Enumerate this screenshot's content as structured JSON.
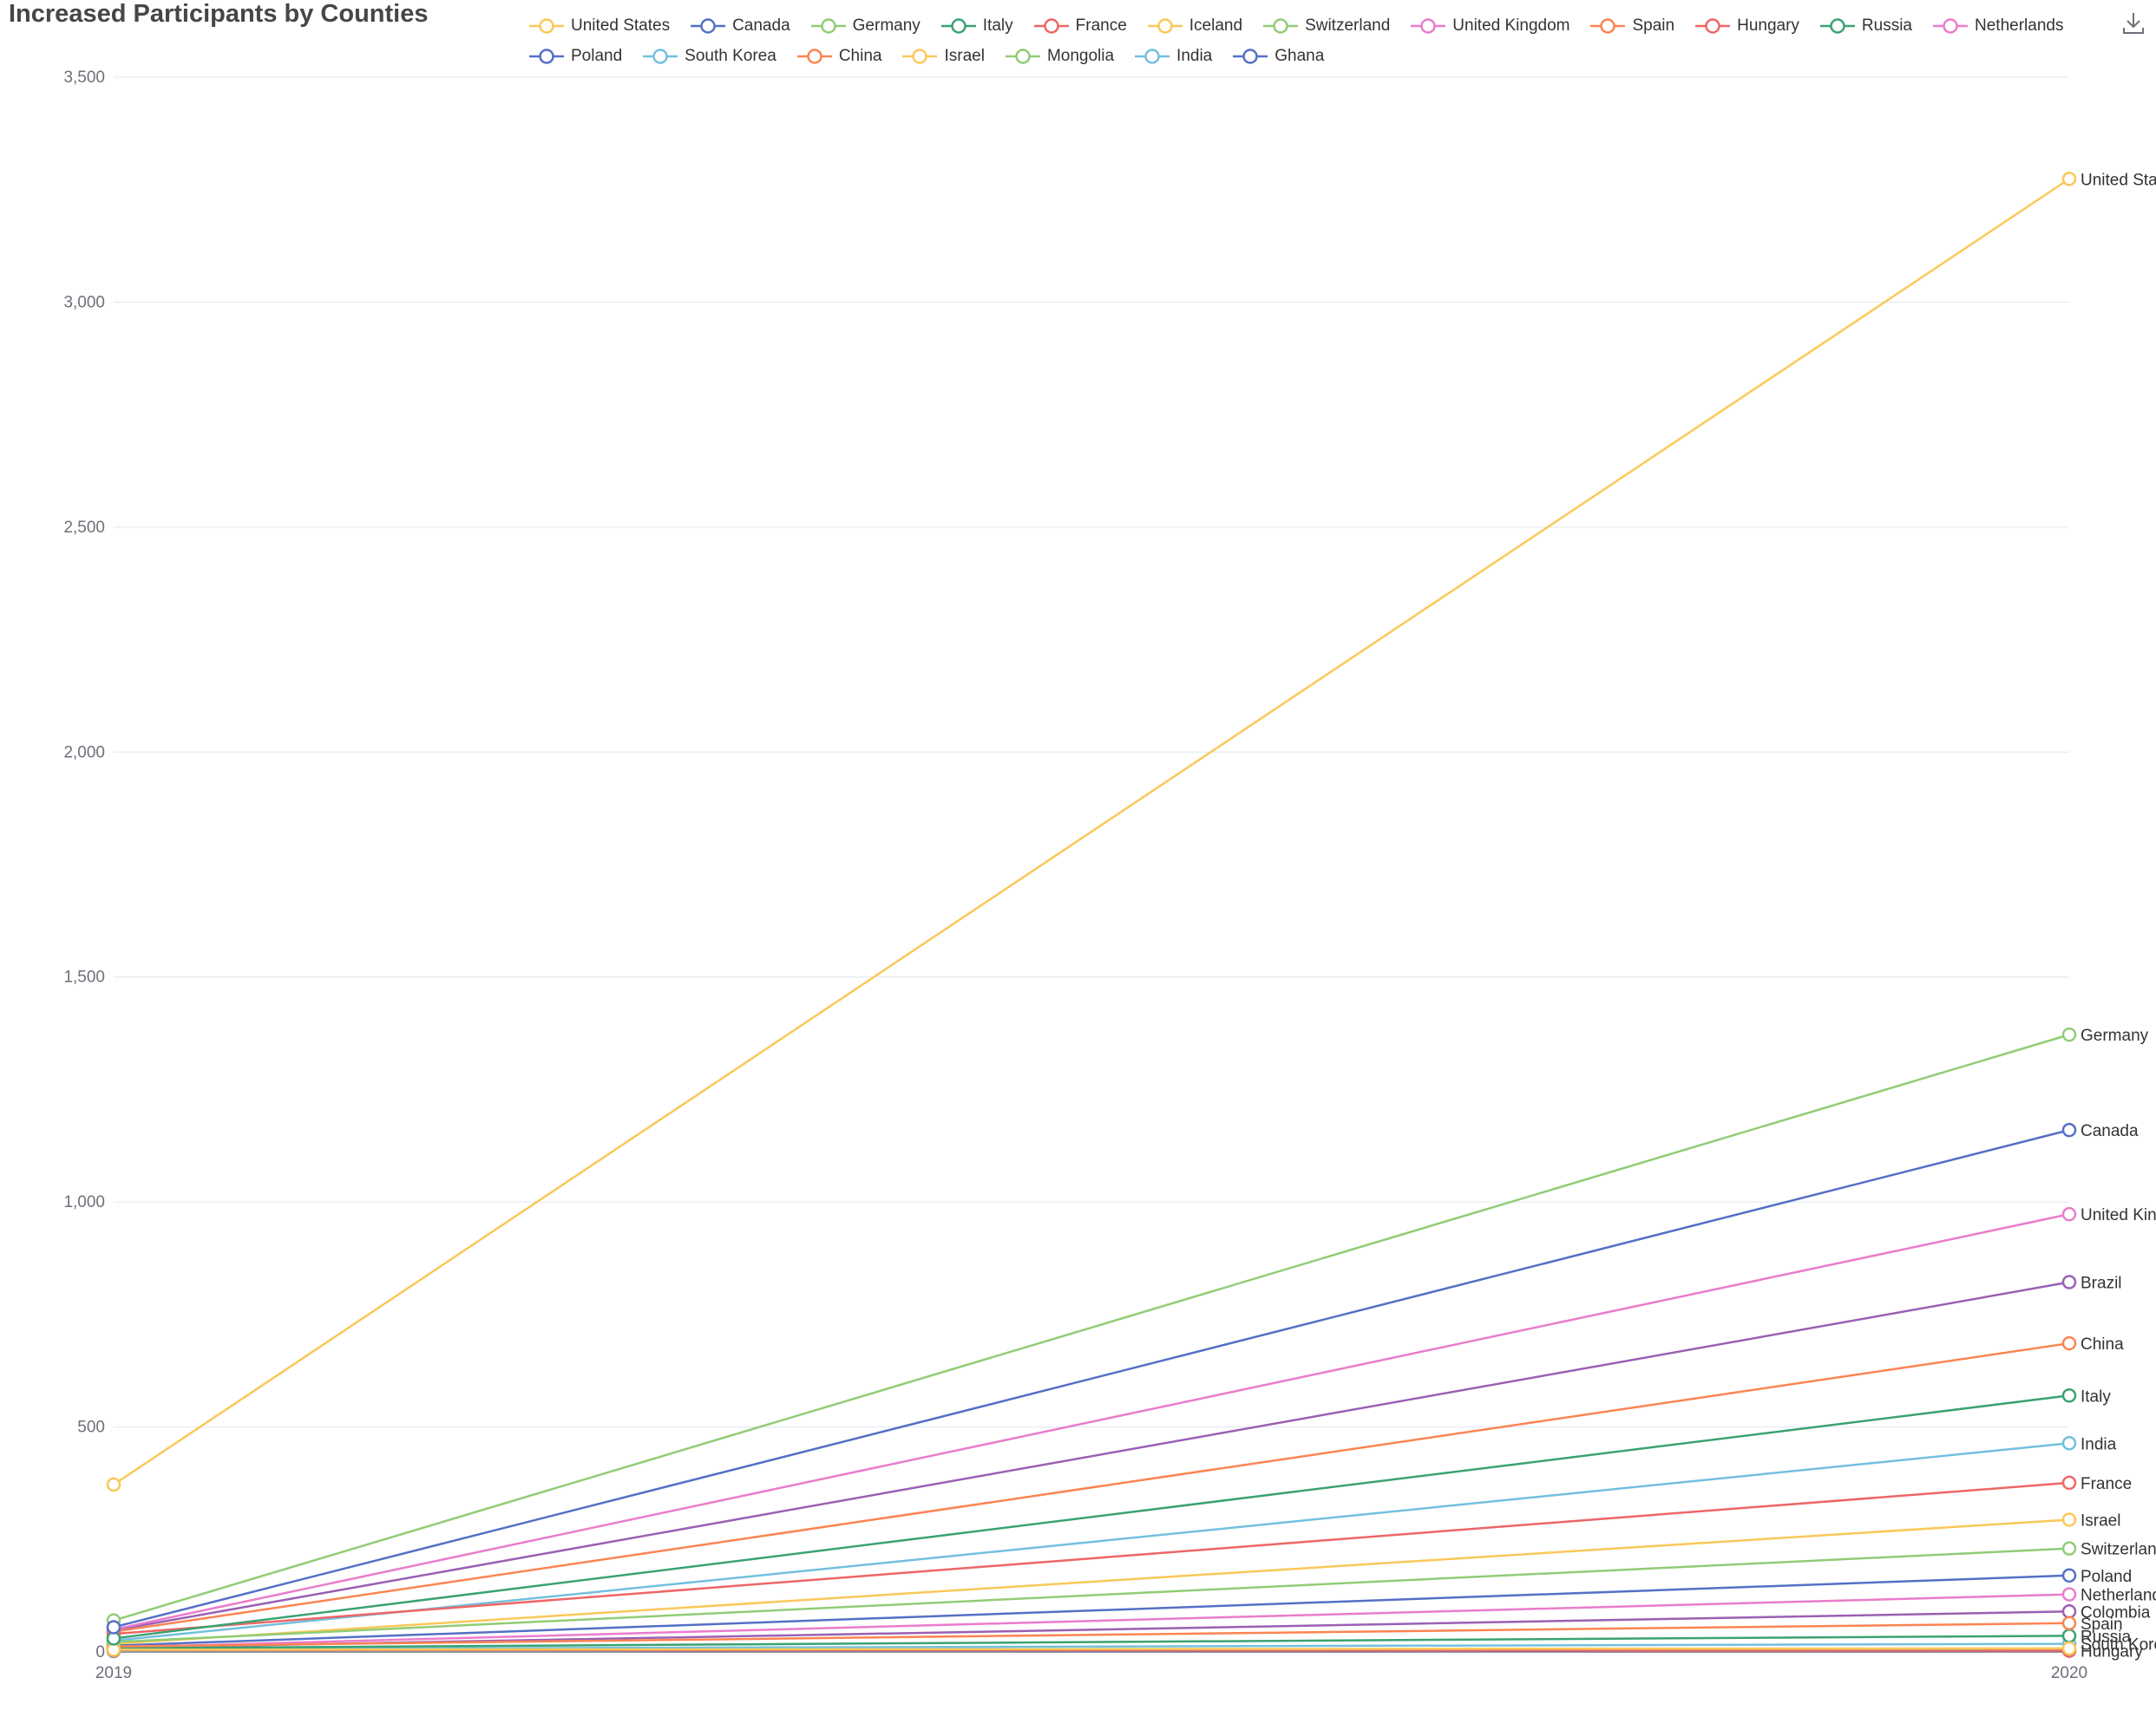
{
  "colors": {
    "grid": "#e0e6f1",
    "axis_text": "#6e7079",
    "axis_line": "#6e7079"
  },
  "toolbox": {
    "icon": "download-icon"
  },
  "chart_data": {
    "type": "line",
    "title": "Increased Participants by Counties",
    "x": [
      "2019",
      "2020"
    ],
    "ylim": [
      0,
      3500
    ],
    "yticks": [
      0,
      500,
      1000,
      1500,
      2000,
      2500,
      3000,
      3500
    ],
    "ytick_labels": [
      "0",
      "500",
      "1,000",
      "1,500",
      "2,000",
      "2,500",
      "3,000",
      "3,500"
    ],
    "grid": true,
    "legend_position": "top",
    "end_labels": true,
    "series": [
      {
        "name": "United States",
        "color": "#fac858",
        "values": [
          372,
          3274
        ],
        "in_legend": true
      },
      {
        "name": "Canada",
        "color": "#5470c6",
        "values": [
          55,
          1160
        ],
        "in_legend": true
      },
      {
        "name": "Germany",
        "color": "#91cc75",
        "values": [
          70,
          1372
        ],
        "in_legend": true
      },
      {
        "name": "Italy",
        "color": "#3ba272",
        "values": [
          30,
          570
        ],
        "in_legend": true
      },
      {
        "name": "France",
        "color": "#ee6666",
        "values": [
          40,
          376
        ],
        "in_legend": true
      },
      {
        "name": "Iceland",
        "color": "#fac858",
        "values": [
          5,
          8
        ],
        "in_legend": true,
        "show_end_label": false
      },
      {
        "name": "Switzerland",
        "color": "#91cc75",
        "values": [
          22,
          230
        ],
        "in_legend": true
      },
      {
        "name": "United Kingdom",
        "color": "#ea7ccc",
        "values": [
          50,
          973
        ],
        "in_legend": true
      },
      {
        "name": "Spain",
        "color": "#fc8452",
        "values": [
          12,
          64
        ],
        "in_legend": true
      },
      {
        "name": "Hungary",
        "color": "#ee6666",
        "values": [
          4,
          3
        ],
        "in_legend": true
      },
      {
        "name": "Russia",
        "color": "#3ba272",
        "values": [
          8,
          36
        ],
        "in_legend": true
      },
      {
        "name": "Netherlands",
        "color": "#ea7ccc",
        "values": [
          10,
          128
        ],
        "in_legend": true
      },
      {
        "name": "Poland",
        "color": "#5470c6",
        "values": [
          14,
          170
        ],
        "in_legend": true
      },
      {
        "name": "South Korea",
        "color": "#73c0de",
        "values": [
          6,
          18
        ],
        "in_legend": true,
        "end_label_text": "South Korea"
      },
      {
        "name": "China",
        "color": "#fc8452",
        "values": [
          45,
          686
        ],
        "in_legend": true
      },
      {
        "name": "Israel",
        "color": "#fac858",
        "values": [
          18,
          294
        ],
        "in_legend": true
      },
      {
        "name": "Mongolia",
        "color": "#91cc75",
        "values": [
          3,
          4
        ],
        "in_legend": true,
        "show_end_label": false
      },
      {
        "name": "India",
        "color": "#73c0de",
        "values": [
          25,
          464
        ],
        "in_legend": true
      },
      {
        "name": "Ghana",
        "color": "#5470c6",
        "values": [
          2,
          3
        ],
        "in_legend": true,
        "show_end_label": false
      },
      {
        "name": "Brazil",
        "color": "#9a60b4",
        "values": [
          48,
          822
        ],
        "in_legend": false
      },
      {
        "name": "Colombia",
        "color": "#9a60b4",
        "values": [
          9,
          90
        ],
        "in_legend": false
      }
    ]
  }
}
